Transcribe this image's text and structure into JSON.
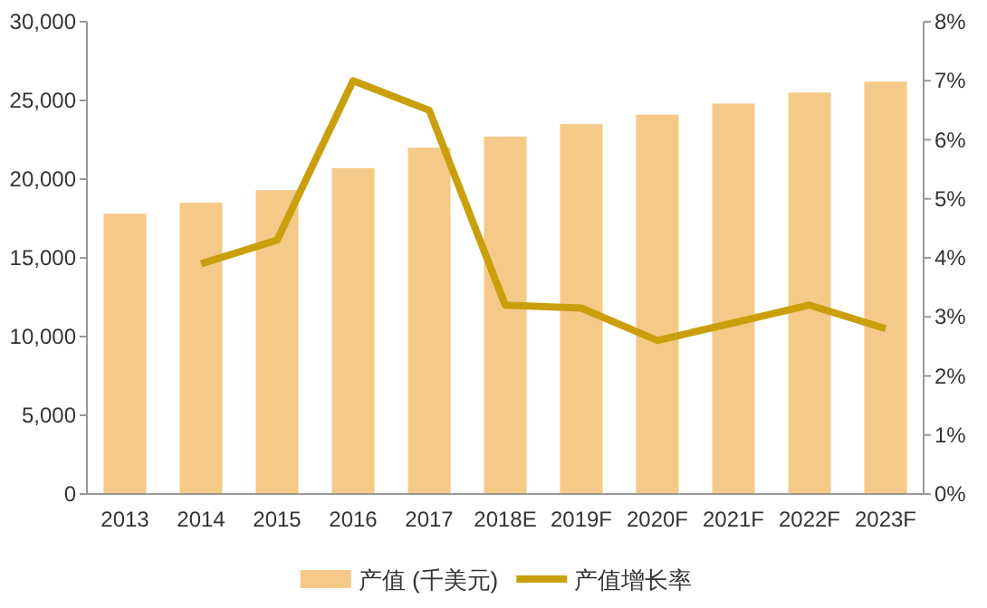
{
  "chart_data": {
    "type": "bar",
    "categories": [
      "2013",
      "2014",
      "2015",
      "2016",
      "2017",
      "2018E",
      "2019F",
      "2020F",
      "2021F",
      "2022F",
      "2023F"
    ],
    "series": [
      {
        "name": "产值 (千美元)",
        "color": "#f5c987",
        "values": [
          17800,
          18500,
          19300,
          20700,
          22000,
          22700,
          23500,
          24100,
          24800,
          25500,
          26200
        ]
      },
      {
        "name": "产值增长率",
        "type": "line",
        "axis": "y2",
        "color": "#c9a00c",
        "values": [
          null,
          3.9,
          4.3,
          7.0,
          6.5,
          3.2,
          3.15,
          2.6,
          2.9,
          3.2,
          2.8
        ]
      }
    ],
    "ylim": [
      0,
      30000
    ],
    "yticks": [
      {
        "value": 0,
        "label": "0"
      },
      {
        "value": 5000,
        "label": "5,000"
      },
      {
        "value": 10000,
        "label": "10,000"
      },
      {
        "value": 15000,
        "label": "15,000"
      },
      {
        "value": 20000,
        "label": "20,000"
      },
      {
        "value": 25000,
        "label": "25,000"
      },
      {
        "value": 30000,
        "label": "30,000"
      }
    ],
    "y2lim": [
      0,
      8
    ],
    "y2ticks": [
      {
        "value": 0,
        "label": "0%"
      },
      {
        "value": 1,
        "label": "1%"
      },
      {
        "value": 2,
        "label": "2%"
      },
      {
        "value": 3,
        "label": "3%"
      },
      {
        "value": 4,
        "label": "4%"
      },
      {
        "value": 5,
        "label": "5%"
      },
      {
        "value": 6,
        "label": "6%"
      },
      {
        "value": 7,
        "label": "7%"
      },
      {
        "value": 8,
        "label": "8%"
      }
    ],
    "legend": "bottom"
  }
}
